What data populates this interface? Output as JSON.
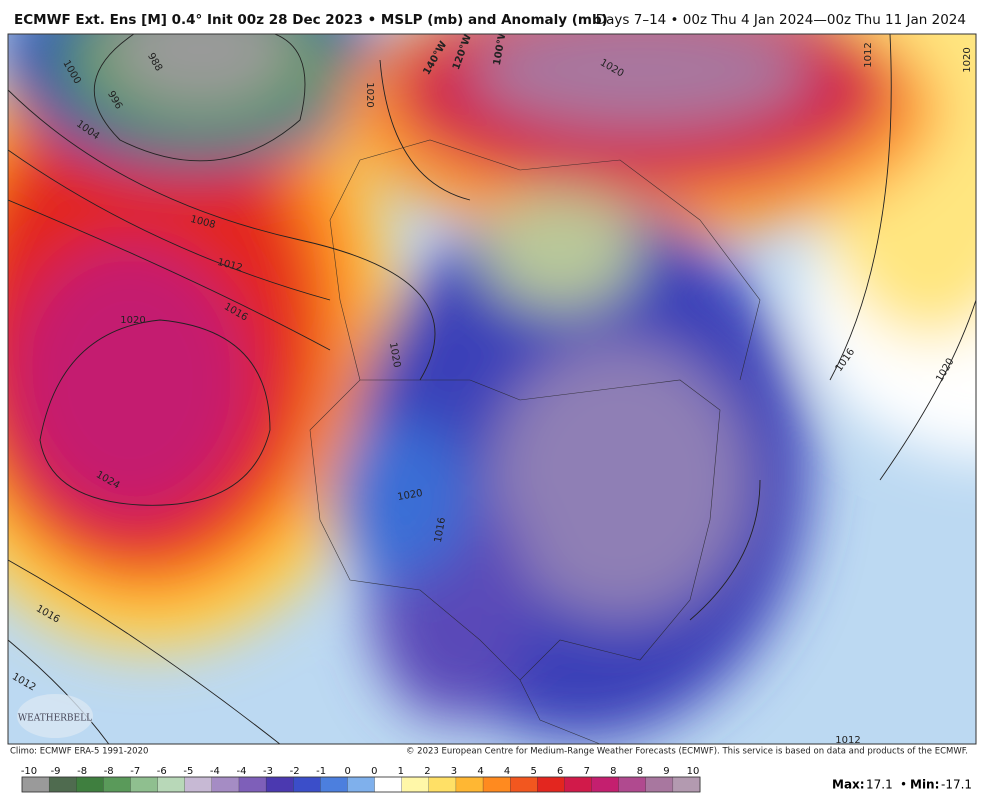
{
  "header": {
    "title": "ECMWF Ext. Ens [M] 0.4° Init 00z 28 Dec 2023 • MSLP (mb) and Anomaly (mb)",
    "period": "Days 7–14 • 00z Thu 4 Jan 2024—00z Thu 11 Jan 2024"
  },
  "map": {
    "isobar_labels": [
      "1000",
      "988",
      "996",
      "1004",
      "1008",
      "1012",
      "1016",
      "1020",
      "1024",
      "1016",
      "1012",
      "1020",
      "1020",
      "1020",
      "1016",
      "1016",
      "1020",
      "1012",
      "1020",
      "1020",
      "1012"
    ],
    "longitude_labels": [
      "140°W",
      "120°W",
      "100°W"
    ],
    "logo": "WEATHERBELL"
  },
  "footer": {
    "climo": "Climo: ECMWF ERA-5 1991-2020",
    "copyright": "© 2023 European Centre for Medium-Range Weather Forecasts (ECMWF). This service is based on data and products of the ECMWF.",
    "colorbar": {
      "labels": [
        "-10",
        "-9",
        "-8",
        "-8",
        "-7",
        "-6",
        "-5",
        "-4",
        "-4",
        "-3",
        "-2",
        "-1",
        "0",
        "0",
        "1",
        "2",
        "3",
        "4",
        "4",
        "5",
        "6",
        "7",
        "8",
        "8",
        "9",
        "10"
      ],
      "colors": [
        "#9a9a9a",
        "#4f6b4f",
        "#3f7f3f",
        "#5a9a5a",
        "#8fbf8f",
        "#b8d8b8",
        "#c7b9d4",
        "#a58cc4",
        "#7e5fb9",
        "#4b39b0",
        "#3b4ec9",
        "#4c7fde",
        "#7fb0ec",
        "#ffffff",
        "#fff7a8",
        "#ffe066",
        "#ffb733",
        "#ff8a1f",
        "#f2571f",
        "#e3261f",
        "#d11a4a",
        "#c41f6f",
        "#b04a8f",
        "#a8779f",
        "#b39ab0"
      ]
    },
    "max_label": "Max:",
    "max_value": "17.1",
    "separator": "•",
    "min_label": "Min:",
    "min_value": "-17.1"
  }
}
